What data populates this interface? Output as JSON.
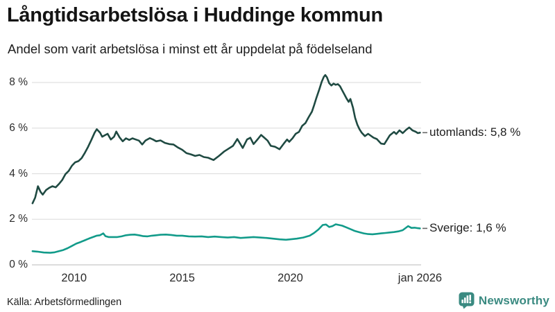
{
  "header": {
    "title": "Långtidsarbetslösa i Huddinge kommun",
    "subtitle": "Andel som varit arbetslösa i minst ett år uppdelat på födelseland"
  },
  "footer": {
    "source": "Källa: Arbetsförmedlingen",
    "brand": "Newsworthy",
    "brand_color": "#3a8a81"
  },
  "chart_data": {
    "type": "line",
    "title": "Långtidsarbetslösa i Huddinge kommun",
    "subtitle": "Andel som varit arbetslösa i minst ett år uppdelat på födelseland",
    "unit": "percent",
    "x_domain": [
      2008.05,
      2026.05
    ],
    "ylim": [
      0,
      8.6
    ],
    "grid": "horizontal-only",
    "grid_color": "#e0e0e0",
    "zero_line_color": "#c6c6c6",
    "yticks": [
      {
        "v": 0,
        "label": "0 %"
      },
      {
        "v": 2,
        "label": "2 %"
      },
      {
        "v": 4,
        "label": "4 %"
      },
      {
        "v": 6,
        "label": "6 %"
      },
      {
        "v": 8,
        "label": "8 %"
      }
    ],
    "xticks": [
      {
        "x": 2010,
        "label": "2010"
      },
      {
        "x": 2015,
        "label": "2015"
      },
      {
        "x": 2020,
        "label": "2020"
      },
      {
        "x": 2026.0,
        "label": "jan 2026"
      }
    ],
    "series": [
      {
        "name": "utomlands",
        "color": "#1f4a42",
        "end_value": 5.8,
        "end_label": "utomlands: 5,8 %",
        "points": [
          [
            2008.08,
            2.7
          ],
          [
            2008.2,
            2.95
          ],
          [
            2008.33,
            3.45
          ],
          [
            2008.45,
            3.2
          ],
          [
            2008.55,
            3.08
          ],
          [
            2008.7,
            3.28
          ],
          [
            2008.85,
            3.38
          ],
          [
            2009.0,
            3.45
          ],
          [
            2009.15,
            3.4
          ],
          [
            2009.3,
            3.55
          ],
          [
            2009.45,
            3.72
          ],
          [
            2009.6,
            3.98
          ],
          [
            2009.75,
            4.12
          ],
          [
            2009.9,
            4.35
          ],
          [
            2010.05,
            4.5
          ],
          [
            2010.2,
            4.55
          ],
          [
            2010.35,
            4.68
          ],
          [
            2010.5,
            4.92
          ],
          [
            2010.65,
            5.18
          ],
          [
            2010.8,
            5.48
          ],
          [
            2010.95,
            5.8
          ],
          [
            2011.05,
            5.95
          ],
          [
            2011.2,
            5.8
          ],
          [
            2011.3,
            5.62
          ],
          [
            2011.45,
            5.7
          ],
          [
            2011.55,
            5.75
          ],
          [
            2011.7,
            5.5
          ],
          [
            2011.85,
            5.62
          ],
          [
            2011.95,
            5.85
          ],
          [
            2012.1,
            5.6
          ],
          [
            2012.25,
            5.42
          ],
          [
            2012.4,
            5.55
          ],
          [
            2012.55,
            5.48
          ],
          [
            2012.7,
            5.55
          ],
          [
            2012.85,
            5.5
          ],
          [
            2013.0,
            5.45
          ],
          [
            2013.15,
            5.28
          ],
          [
            2013.3,
            5.45
          ],
          [
            2013.5,
            5.56
          ],
          [
            2013.65,
            5.5
          ],
          [
            2013.8,
            5.42
          ],
          [
            2014.0,
            5.46
          ],
          [
            2014.2,
            5.35
          ],
          [
            2014.4,
            5.3
          ],
          [
            2014.6,
            5.28
          ],
          [
            2014.8,
            5.15
          ],
          [
            2015.0,
            5.05
          ],
          [
            2015.2,
            4.9
          ],
          [
            2015.4,
            4.85
          ],
          [
            2015.6,
            4.78
          ],
          [
            2015.8,
            4.82
          ],
          [
            2016.0,
            4.73
          ],
          [
            2016.2,
            4.7
          ],
          [
            2016.45,
            4.6
          ],
          [
            2016.7,
            4.78
          ],
          [
            2016.95,
            4.98
          ],
          [
            2017.1,
            5.07
          ],
          [
            2017.35,
            5.22
          ],
          [
            2017.55,
            5.52
          ],
          [
            2017.8,
            5.13
          ],
          [
            2018.0,
            5.5
          ],
          [
            2018.15,
            5.58
          ],
          [
            2018.3,
            5.3
          ],
          [
            2018.5,
            5.52
          ],
          [
            2018.65,
            5.7
          ],
          [
            2018.8,
            5.58
          ],
          [
            2018.95,
            5.45
          ],
          [
            2019.1,
            5.22
          ],
          [
            2019.3,
            5.18
          ],
          [
            2019.5,
            5.07
          ],
          [
            2019.7,
            5.32
          ],
          [
            2019.85,
            5.5
          ],
          [
            2019.95,
            5.4
          ],
          [
            2020.1,
            5.55
          ],
          [
            2020.25,
            5.75
          ],
          [
            2020.4,
            5.83
          ],
          [
            2020.55,
            6.1
          ],
          [
            2020.7,
            6.22
          ],
          [
            2020.85,
            6.48
          ],
          [
            2021.0,
            6.72
          ],
          [
            2021.1,
            7.0
          ],
          [
            2021.2,
            7.3
          ],
          [
            2021.35,
            7.72
          ],
          [
            2021.45,
            8.02
          ],
          [
            2021.55,
            8.25
          ],
          [
            2021.62,
            8.33
          ],
          [
            2021.7,
            8.22
          ],
          [
            2021.8,
            7.97
          ],
          [
            2021.9,
            7.87
          ],
          [
            2022.0,
            7.95
          ],
          [
            2022.1,
            7.9
          ],
          [
            2022.2,
            7.93
          ],
          [
            2022.3,
            7.84
          ],
          [
            2022.4,
            7.66
          ],
          [
            2022.5,
            7.48
          ],
          [
            2022.6,
            7.3
          ],
          [
            2022.7,
            7.15
          ],
          [
            2022.78,
            7.28
          ],
          [
            2022.9,
            6.9
          ],
          [
            2023.0,
            6.45
          ],
          [
            2023.1,
            6.15
          ],
          [
            2023.2,
            5.95
          ],
          [
            2023.3,
            5.8
          ],
          [
            2023.45,
            5.65
          ],
          [
            2023.6,
            5.75
          ],
          [
            2023.85,
            5.58
          ],
          [
            2024.0,
            5.52
          ],
          [
            2024.2,
            5.32
          ],
          [
            2024.35,
            5.3
          ],
          [
            2024.6,
            5.68
          ],
          [
            2024.8,
            5.83
          ],
          [
            2024.9,
            5.74
          ],
          [
            2025.05,
            5.9
          ],
          [
            2025.2,
            5.78
          ],
          [
            2025.35,
            5.92
          ],
          [
            2025.5,
            6.03
          ],
          [
            2025.65,
            5.9
          ],
          [
            2025.8,
            5.84
          ],
          [
            2025.9,
            5.78
          ],
          [
            2026.0,
            5.8
          ]
        ]
      },
      {
        "name": "Sverige",
        "color": "#129b8a",
        "end_value": 1.6,
        "end_label": "Sverige: 1,6 %",
        "points": [
          [
            2008.08,
            0.6
          ],
          [
            2008.3,
            0.58
          ],
          [
            2008.6,
            0.54
          ],
          [
            2008.9,
            0.53
          ],
          [
            2009.1,
            0.55
          ],
          [
            2009.3,
            0.6
          ],
          [
            2009.5,
            0.65
          ],
          [
            2009.7,
            0.73
          ],
          [
            2009.9,
            0.83
          ],
          [
            2010.1,
            0.93
          ],
          [
            2010.3,
            1.0
          ],
          [
            2010.5,
            1.08
          ],
          [
            2010.7,
            1.16
          ],
          [
            2010.9,
            1.23
          ],
          [
            2011.05,
            1.28
          ],
          [
            2011.2,
            1.3
          ],
          [
            2011.35,
            1.38
          ],
          [
            2011.45,
            1.26
          ],
          [
            2011.6,
            1.22
          ],
          [
            2011.8,
            1.22
          ],
          [
            2012.0,
            1.22
          ],
          [
            2012.2,
            1.25
          ],
          [
            2012.4,
            1.3
          ],
          [
            2012.6,
            1.32
          ],
          [
            2012.8,
            1.33
          ],
          [
            2013.0,
            1.3
          ],
          [
            2013.2,
            1.26
          ],
          [
            2013.4,
            1.25
          ],
          [
            2013.6,
            1.28
          ],
          [
            2013.8,
            1.3
          ],
          [
            2014.0,
            1.32
          ],
          [
            2014.25,
            1.33
          ],
          [
            2014.5,
            1.31
          ],
          [
            2014.75,
            1.28
          ],
          [
            2015.0,
            1.28
          ],
          [
            2015.3,
            1.25
          ],
          [
            2015.6,
            1.24
          ],
          [
            2015.9,
            1.25
          ],
          [
            2016.2,
            1.22
          ],
          [
            2016.5,
            1.24
          ],
          [
            2016.8,
            1.22
          ],
          [
            2017.1,
            1.2
          ],
          [
            2017.4,
            1.22
          ],
          [
            2017.7,
            1.18
          ],
          [
            2018.0,
            1.2
          ],
          [
            2018.3,
            1.22
          ],
          [
            2018.6,
            1.2
          ],
          [
            2018.9,
            1.18
          ],
          [
            2019.2,
            1.15
          ],
          [
            2019.5,
            1.12
          ],
          [
            2019.8,
            1.1
          ],
          [
            2020.0,
            1.12
          ],
          [
            2020.3,
            1.15
          ],
          [
            2020.6,
            1.2
          ],
          [
            2020.9,
            1.28
          ],
          [
            2021.1,
            1.4
          ],
          [
            2021.3,
            1.55
          ],
          [
            2021.5,
            1.75
          ],
          [
            2021.65,
            1.77
          ],
          [
            2021.8,
            1.66
          ],
          [
            2021.95,
            1.7
          ],
          [
            2022.1,
            1.78
          ],
          [
            2022.25,
            1.75
          ],
          [
            2022.4,
            1.72
          ],
          [
            2022.6,
            1.64
          ],
          [
            2022.8,
            1.56
          ],
          [
            2023.0,
            1.48
          ],
          [
            2023.2,
            1.43
          ],
          [
            2023.4,
            1.38
          ],
          [
            2023.6,
            1.35
          ],
          [
            2023.8,
            1.34
          ],
          [
            2024.0,
            1.36
          ],
          [
            2024.2,
            1.38
          ],
          [
            2024.4,
            1.4
          ],
          [
            2024.6,
            1.42
          ],
          [
            2024.8,
            1.44
          ],
          [
            2025.0,
            1.47
          ],
          [
            2025.2,
            1.52
          ],
          [
            2025.45,
            1.7
          ],
          [
            2025.6,
            1.62
          ],
          [
            2025.75,
            1.63
          ],
          [
            2025.9,
            1.61
          ],
          [
            2026.0,
            1.6
          ]
        ]
      }
    ],
    "source": "Källa: Arbetsförmedlingen"
  }
}
